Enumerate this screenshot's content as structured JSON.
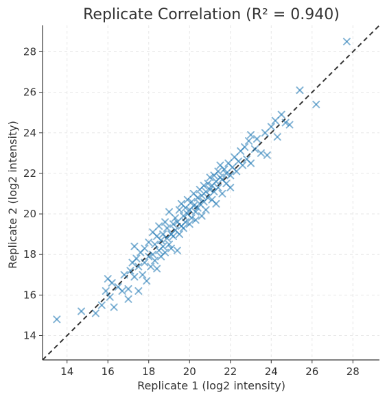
{
  "chart_data": {
    "type": "scatter",
    "title": "Replicate Correlation (R² = 0.940)",
    "xlabel": "Replicate 1 (log2 intensity)",
    "ylabel": "Replicate 2 (log2 intensity)",
    "xlim": [
      12.8,
      29.3
    ],
    "ylim": [
      12.8,
      29.3
    ],
    "xticks": [
      14,
      16,
      18,
      20,
      22,
      24,
      26,
      28
    ],
    "yticks": [
      14,
      16,
      18,
      20,
      22,
      24,
      26,
      28
    ],
    "grid": true,
    "marker": "x",
    "reference_line": "y = x",
    "colors": {
      "points": "#1f77b4",
      "reference": "#333333"
    },
    "points": [
      [
        13.5,
        14.8
      ],
      [
        14.7,
        15.2
      ],
      [
        15.4,
        15.1
      ],
      [
        15.7,
        15.5
      ],
      [
        15.9,
        16.2
      ],
      [
        16.0,
        16.8
      ],
      [
        16.1,
        15.9
      ],
      [
        16.2,
        16.6
      ],
      [
        16.3,
        15.4
      ],
      [
        16.5,
        16.4
      ],
      [
        16.7,
        16.2
      ],
      [
        16.8,
        17.0
      ],
      [
        17.0,
        16.3
      ],
      [
        17.0,
        15.8
      ],
      [
        17.1,
        17.2
      ],
      [
        17.2,
        17.6
      ],
      [
        17.3,
        16.9
      ],
      [
        17.3,
        18.4
      ],
      [
        17.4,
        17.8
      ],
      [
        17.5,
        17.4
      ],
      [
        17.5,
        16.2
      ],
      [
        17.6,
        18.1
      ],
      [
        17.7,
        17.0
      ],
      [
        17.8,
        17.6
      ],
      [
        17.8,
        18.3
      ],
      [
        17.9,
        16.7
      ],
      [
        18.0,
        17.9
      ],
      [
        18.0,
        18.6
      ],
      [
        18.1,
        17.4
      ],
      [
        18.2,
        18.0
      ],
      [
        18.2,
        19.1
      ],
      [
        18.3,
        17.7
      ],
      [
        18.3,
        18.5
      ],
      [
        18.4,
        18.9
      ],
      [
        18.4,
        17.3
      ],
      [
        18.5,
        18.2
      ],
      [
        18.5,
        19.4
      ],
      [
        18.6,
        18.7
      ],
      [
        18.6,
        17.9
      ],
      [
        18.7,
        19.0
      ],
      [
        18.7,
        18.4
      ],
      [
        18.8,
        19.6
      ],
      [
        18.8,
        18.1
      ],
      [
        18.9,
        18.8
      ],
      [
        18.9,
        19.3
      ],
      [
        19.0,
        18.5
      ],
      [
        19.0,
        20.1
      ],
      [
        19.1,
        19.0
      ],
      [
        19.1,
        18.3
      ],
      [
        19.2,
        19.5
      ],
      [
        19.2,
        18.9
      ],
      [
        19.3,
        19.8
      ],
      [
        19.3,
        19.2
      ],
      [
        19.4,
        18.2
      ],
      [
        19.4,
        19.6
      ],
      [
        19.5,
        20.2
      ],
      [
        19.5,
        19.0
      ],
      [
        19.6,
        19.4
      ],
      [
        19.6,
        20.5
      ],
      [
        19.7,
        19.9
      ],
      [
        19.7,
        19.3
      ],
      [
        19.8,
        20.3
      ],
      [
        19.8,
        19.6
      ],
      [
        19.9,
        20.0
      ],
      [
        19.9,
        20.7
      ],
      [
        20.0,
        19.5
      ],
      [
        20.0,
        20.2
      ],
      [
        20.1,
        20.6
      ],
      [
        20.1,
        19.8
      ],
      [
        20.2,
        20.4
      ],
      [
        20.2,
        21.0
      ],
      [
        20.3,
        20.1
      ],
      [
        20.3,
        19.7
      ],
      [
        20.4,
        20.8
      ],
      [
        20.4,
        20.3
      ],
      [
        20.5,
        21.2
      ],
      [
        20.5,
        20.5
      ],
      [
        20.6,
        19.9
      ],
      [
        20.6,
        20.9
      ],
      [
        20.7,
        21.4
      ],
      [
        20.7,
        20.6
      ],
      [
        20.8,
        21.1
      ],
      [
        20.8,
        20.2
      ],
      [
        20.9,
        21.5
      ],
      [
        20.9,
        20.8
      ],
      [
        21.0,
        21.2
      ],
      [
        21.0,
        21.8
      ],
      [
        21.1,
        20.7
      ],
      [
        21.1,
        21.4
      ],
      [
        21.2,
        21.9
      ],
      [
        21.2,
        21.1
      ],
      [
        21.3,
        20.5
      ],
      [
        21.3,
        21.6
      ],
      [
        21.4,
        22.1
      ],
      [
        21.4,
        21.3
      ],
      [
        21.5,
        21.8
      ],
      [
        21.5,
        22.4
      ],
      [
        21.6,
        21.0
      ],
      [
        21.6,
        21.7
      ],
      [
        21.7,
        22.2
      ],
      [
        21.8,
        21.5
      ],
      [
        21.8,
        22.0
      ],
      [
        21.9,
        22.5
      ],
      [
        22.0,
        21.9
      ],
      [
        22.0,
        21.3
      ],
      [
        22.1,
        22.3
      ],
      [
        22.2,
        22.8
      ],
      [
        22.3,
        22.1
      ],
      [
        22.4,
        22.6
      ],
      [
        22.5,
        23.1
      ],
      [
        22.6,
        22.4
      ],
      [
        22.7,
        23.3
      ],
      [
        22.8,
        22.7
      ],
      [
        22.9,
        23.6
      ],
      [
        23.0,
        22.5
      ],
      [
        23.0,
        23.9
      ],
      [
        23.2,
        23.2
      ],
      [
        23.3,
        23.7
      ],
      [
        23.5,
        23.0
      ],
      [
        23.7,
        24.0
      ],
      [
        23.8,
        22.9
      ],
      [
        24.0,
        24.3
      ],
      [
        24.2,
        24.6
      ],
      [
        24.3,
        23.8
      ],
      [
        24.5,
        24.9
      ],
      [
        24.7,
        24.5
      ],
      [
        24.9,
        24.4
      ],
      [
        25.4,
        26.1
      ],
      [
        26.2,
        25.4
      ],
      [
        27.7,
        28.5
      ]
    ]
  }
}
